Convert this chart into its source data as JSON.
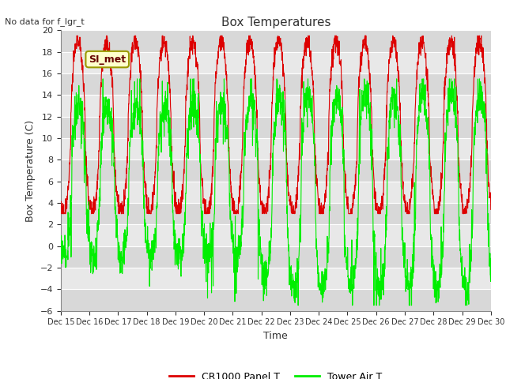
{
  "title": "Box Temperatures",
  "no_data_label": "No data for f_lgr_t",
  "legend_label": "SI_met",
  "xlabel": "Time",
  "ylabel": "Box Temperature (C)",
  "ylim": [
    -6,
    20
  ],
  "yticks": [
    -6,
    -4,
    -2,
    0,
    2,
    4,
    6,
    8,
    10,
    12,
    14,
    16,
    18,
    20
  ],
  "xtick_labels": [
    "Dec 15",
    "Dec 16",
    "Dec 17",
    "Dec 18",
    "Dec 19",
    "Dec 20",
    "Dec 21",
    "Dec 22",
    "Dec 23",
    "Dec 24",
    "Dec 25",
    "Dec 26",
    "Dec 27",
    "Dec 28",
    "Dec 29",
    "Dec 30"
  ],
  "red_color": "#dd0000",
  "green_color": "#00ee00",
  "fig_bg": "#ffffff",
  "plot_bg": "#e8e8e8",
  "band_light": "#e8e8e8",
  "band_dark": "#d8d8d8",
  "grid_color": "#ffffff",
  "legend_box_face": "#ffffcc",
  "legend_box_edge": "#999900",
  "title_fontsize": 11,
  "label_fontsize": 9,
  "tick_fontsize": 8,
  "n_days": 15,
  "n_per_day": 144
}
